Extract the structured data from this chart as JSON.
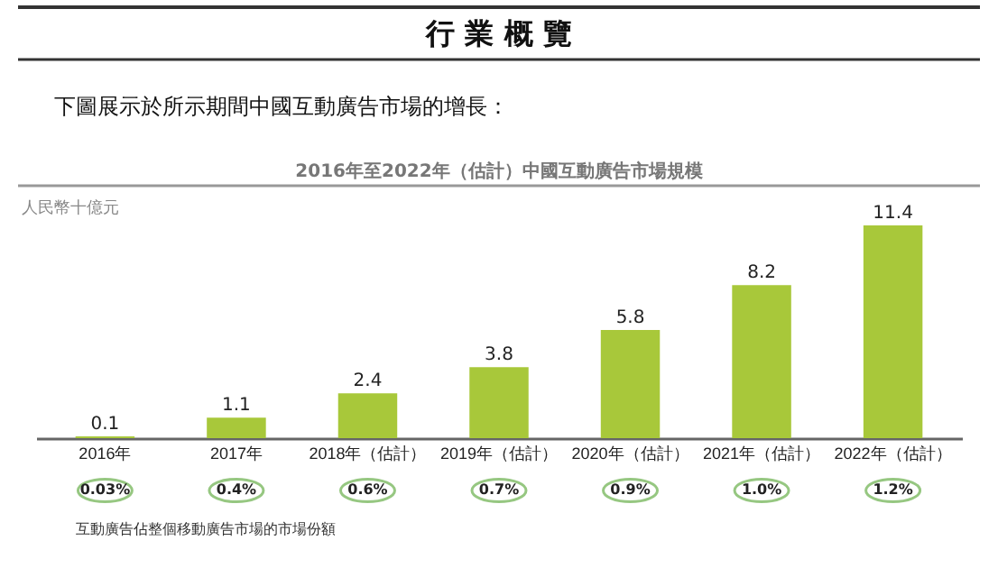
{
  "chart_data": {
    "type": "bar",
    "title": "2016年至2022年（估計）中國互動廣告市場規模",
    "ylabel": "人民幣十億元",
    "categories": [
      "2016年",
      "2017年",
      "2018年（估計）",
      "2019年（估計）",
      "2020年（估計）",
      "2021年（估計）",
      "2022年（估計）"
    ],
    "values": [
      0.1,
      1.1,
      2.4,
      3.8,
      5.8,
      8.2,
      11.4
    ],
    "color": "#a8c83a",
    "data_labels": true,
    "annotations": [
      "行 業 概 覽",
      "下圖展示於所示期間中國互動廣告市場的增長：",
      "0.03%",
      "0.4%",
      "0.6%",
      "0.7%",
      "0.9%",
      "1.0%",
      "1.2%",
      "互動廣告佔整個移動廣告市場的市場份額"
    ]
  }
}
